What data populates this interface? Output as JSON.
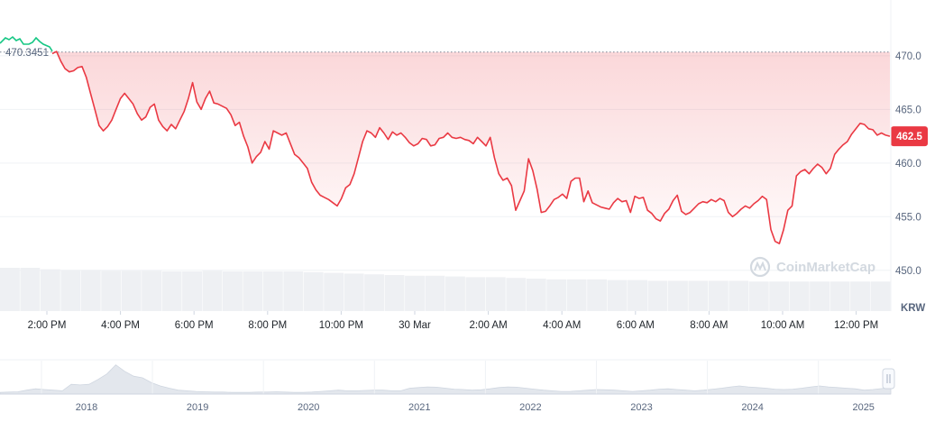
{
  "chart_data": {
    "type": "area",
    "unit": "KRW",
    "ylim": [
      446.2,
      475.2
    ],
    "y_ticks": [
      "470.0",
      "465.0",
      "460.0",
      "455.0",
      "450.0"
    ],
    "y_tick_values": [
      470,
      465,
      460,
      455,
      450
    ],
    "x_tick_labels": [
      "2:00 PM",
      "4:00 PM",
      "6:00 PM",
      "8:00 PM",
      "10:00 PM",
      "30 Mar",
      "2:00 AM",
      "4:00 AM",
      "6:00 AM",
      "8:00 AM",
      "10:00 AM",
      "12:00 PM"
    ],
    "open_price": 470.3451,
    "open_price_label": "470.3451",
    "current_price": 462.5,
    "current_price_label": "462.5",
    "watermark": "CoinMarketCap",
    "grid": true,
    "colors": {
      "line_down": "#ea3943",
      "line_up": "#16c784",
      "badge": "#ea3943",
      "grid": "#eff2f5",
      "volume": "#eef0f3"
    },
    "series": [
      {
        "values": [
          470.2,
          470.4,
          469.5,
          468.8,
          468.5,
          468.6,
          468.9,
          469.0,
          468.0,
          466.5,
          465.0,
          463.5,
          463.0,
          463.4,
          464.0,
          465.0,
          466.0,
          466.5,
          466.0,
          465.5,
          464.6,
          464.0,
          464.3,
          465.2,
          465.5,
          464.0,
          463.4,
          463.0,
          463.6,
          463.2,
          464.0,
          464.8,
          466.0,
          467.5,
          465.7,
          465.0,
          466.0,
          466.7,
          465.6,
          465.5,
          465.3,
          465.1,
          464.5,
          463.5,
          463.8,
          462.5,
          461.5,
          460.0,
          460.6,
          461.0,
          462.0,
          461.3,
          463.0,
          462.8,
          462.6,
          462.8,
          461.8,
          460.8,
          460.5,
          460.0,
          459.5,
          458.2,
          457.5,
          457.0,
          456.8,
          456.6,
          456.3,
          456.0,
          456.7,
          457.7,
          458.0,
          459.0,
          460.5,
          462.0,
          463.0,
          462.8,
          462.4,
          463.3,
          462.8,
          462.2,
          462.9,
          462.6,
          462.8,
          462.4,
          461.9,
          461.6,
          461.8,
          462.3,
          462.2,
          461.6,
          461.7,
          462.3,
          462.4,
          462.8,
          462.4,
          462.3,
          462.4,
          462.2,
          462.1,
          461.8,
          462.4,
          462.0,
          461.6,
          462.4,
          460.5,
          459.0,
          458.4,
          458.6,
          457.9,
          455.6,
          456.5,
          457.4,
          460.4,
          459.3,
          457.6,
          455.4,
          455.5,
          456.0,
          456.6,
          456.8,
          457.1,
          456.7,
          458.3,
          458.6,
          458.6,
          456.4,
          457.4,
          456.3,
          456.1,
          455.9,
          455.8,
          455.7,
          456.3,
          456.7,
          456.4,
          456.5,
          455.4,
          456.9,
          456.7,
          456.8,
          455.6,
          455.3,
          454.8,
          454.6,
          455.3,
          455.7,
          456.5,
          457.0,
          455.5,
          455.2,
          455.4,
          455.8,
          456.2,
          456.4,
          456.3,
          456.6,
          456.4,
          456.7,
          456.5,
          455.4,
          455.0,
          455.3,
          455.7,
          456.0,
          455.8,
          456.2,
          456.5,
          456.9,
          456.6,
          453.8,
          452.7,
          452.5,
          453.8,
          455.6,
          456.0,
          458.8,
          459.2,
          459.4,
          459.0,
          459.5,
          459.9,
          459.6,
          459.0,
          459.5,
          460.8,
          461.3,
          461.7,
          462.0,
          462.7,
          463.2,
          463.7,
          463.6,
          463.2,
          463.1,
          462.6,
          462.8,
          462.6,
          462.5
        ]
      }
    ],
    "volume_values": [
      0.6,
      0.6,
      0.58,
      0.57,
      0.57,
      0.56,
      0.56,
      0.56,
      0.55,
      0.55,
      0.56,
      0.55,
      0.55,
      0.55,
      0.55,
      0.54,
      0.53,
      0.52,
      0.51,
      0.5,
      0.49,
      0.49,
      0.48,
      0.47,
      0.47,
      0.46,
      0.45,
      0.44,
      0.44,
      0.44,
      0.43,
      0.43,
      0.42,
      0.42,
      0.42,
      0.42,
      0.42,
      0.41,
      0.41,
      0.41,
      0.41,
      0.41,
      0.41,
      0.41
    ],
    "navigator": {
      "year_labels": [
        "2018",
        "2019",
        "2020",
        "2021",
        "2022",
        "2023",
        "2024",
        "2025"
      ],
      "values": [
        0.05,
        0.06,
        0.07,
        0.12,
        0.16,
        0.14,
        0.12,
        0.1,
        0.3,
        0.28,
        0.3,
        0.45,
        0.62,
        0.9,
        0.7,
        0.55,
        0.5,
        0.35,
        0.25,
        0.18,
        0.12,
        0.1,
        0.08,
        0.07,
        0.06,
        0.06,
        0.05,
        0.05,
        0.05,
        0.06,
        0.06,
        0.07,
        0.06,
        0.05,
        0.05,
        0.06,
        0.08,
        0.1,
        0.12,
        0.1,
        0.1,
        0.11,
        0.12,
        0.12,
        0.1,
        0.1,
        0.18,
        0.2,
        0.22,
        0.21,
        0.18,
        0.15,
        0.14,
        0.12,
        0.13,
        0.16,
        0.2,
        0.22,
        0.21,
        0.18,
        0.15,
        0.12,
        0.1,
        0.08,
        0.08,
        0.1,
        0.12,
        0.14,
        0.13,
        0.12,
        0.1,
        0.08,
        0.1,
        0.12,
        0.15,
        0.16,
        0.14,
        0.12,
        0.1,
        0.12,
        0.15,
        0.18,
        0.22,
        0.25,
        0.22,
        0.2,
        0.18,
        0.15,
        0.14,
        0.15,
        0.18,
        0.22,
        0.25,
        0.22,
        0.2,
        0.18,
        0.16,
        0.12,
        0.14,
        0.17,
        0.2
      ]
    }
  }
}
